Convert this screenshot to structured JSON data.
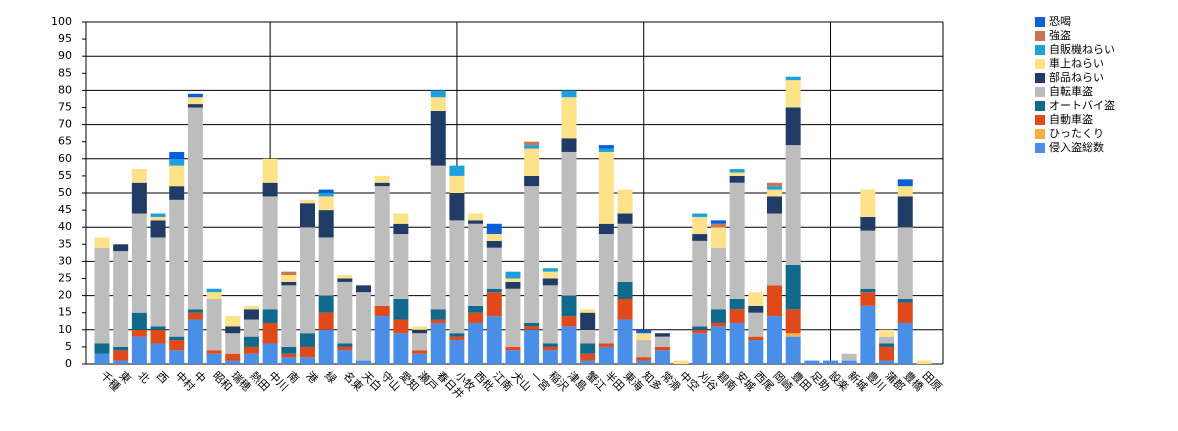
{
  "chart_data": {
    "type": "stacked_bar",
    "categories": [
      "千種",
      "東",
      "北",
      "西",
      "中村",
      "中",
      "昭和",
      "瑞穂",
      "熱田",
      "中川",
      "南",
      "港",
      "緑",
      "名東",
      "天白",
      "守山",
      "愛知",
      "瀬戸",
      "春日井",
      "小牧",
      "西枇",
      "江南",
      "犬山",
      "一宮",
      "稲沢",
      "津島",
      "蟹江",
      "半田",
      "東海",
      "知多",
      "常滑",
      "中空",
      "刈谷",
      "碧南",
      "安城",
      "西尾",
      "岡崎",
      "豊田",
      "足助",
      "設楽",
      "新城",
      "豊川",
      "蒲郡",
      "豊橋",
      "田原"
    ],
    "series": [
      {
        "name": "侵入盗総数",
        "color": "#4a8fe7",
        "values": [
          3,
          1,
          8,
          6,
          4,
          13,
          3,
          1,
          3,
          6,
          2,
          2,
          10,
          4,
          1,
          14,
          9,
          3,
          12,
          7,
          12,
          14,
          4,
          10,
          4,
          11,
          1,
          5,
          13,
          1,
          4,
          0,
          9,
          11,
          12,
          7,
          14,
          8,
          1,
          1,
          1,
          17,
          1,
          12,
          0
        ]
      },
      {
        "name": "ひったくり",
        "color": "#f5b041",
        "values": [
          0,
          0,
          0,
          0,
          0,
          0,
          0,
          0,
          0,
          0,
          0,
          0,
          0,
          0,
          0,
          0,
          0,
          0,
          0,
          0,
          0,
          0,
          0,
          0,
          0,
          0,
          0,
          0,
          0,
          0,
          0,
          0,
          0,
          0,
          0,
          0,
          0,
          1,
          0,
          0,
          0,
          0,
          0,
          0,
          0
        ]
      },
      {
        "name": "自動車盗",
        "color": "#e04a1a",
        "values": [
          0,
          3,
          2,
          4,
          3,
          2,
          1,
          2,
          2,
          6,
          1,
          3,
          5,
          1,
          0,
          3,
          4,
          1,
          1,
          1,
          3,
          7,
          1,
          1,
          1,
          3,
          2,
          1,
          6,
          1,
          1,
          0,
          1,
          1,
          4,
          1,
          9,
          7,
          0,
          0,
          0,
          4,
          4,
          6,
          0
        ]
      },
      {
        "name": "オートバイ盗",
        "color": "#116a8c",
        "values": [
          3,
          1,
          5,
          1,
          1,
          1,
          0,
          0,
          3,
          4,
          2,
          4,
          5,
          1,
          0,
          0,
          6,
          0,
          3,
          1,
          2,
          1,
          0,
          1,
          1,
          6,
          3,
          0,
          5,
          0,
          0,
          0,
          1,
          4,
          3,
          0,
          0,
          13,
          0,
          0,
          0,
          1,
          1,
          1,
          0
        ]
      },
      {
        "name": "自転車盗",
        "color": "#bdbdbd",
        "values": [
          28,
          28,
          29,
          26,
          40,
          59,
          15,
          6,
          5,
          33,
          18,
          31,
          17,
          18,
          20,
          35,
          19,
          5,
          42,
          33,
          24,
          12,
          17,
          40,
          17,
          42,
          4,
          32,
          17,
          5,
          3,
          0,
          25,
          18,
          34,
          7,
          21,
          35,
          0,
          0,
          2,
          17,
          2,
          21,
          0
        ]
      },
      {
        "name": "部品ねらい",
        "color": "#1f3b66",
        "values": [
          0,
          2,
          9,
          5,
          4,
          1,
          0,
          2,
          3,
          4,
          1,
          7,
          8,
          1,
          2,
          1,
          3,
          1,
          16,
          8,
          1,
          2,
          2,
          3,
          2,
          4,
          5,
          3,
          3,
          0,
          1,
          0,
          2,
          0,
          2,
          2,
          5,
          11,
          0,
          0,
          0,
          4,
          0,
          9,
          0
        ]
      },
      {
        "name": "車上ねらい",
        "color": "#fde28a",
        "values": [
          3,
          0,
          4,
          1,
          6,
          2,
          2,
          3,
          1,
          7,
          2,
          1,
          4,
          1,
          0,
          2,
          3,
          1,
          4,
          5,
          2,
          2,
          1,
          8,
          2,
          12,
          1,
          21,
          7,
          2,
          0,
          1,
          5,
          6,
          1,
          4,
          2,
          8,
          0,
          0,
          0,
          8,
          2,
          3,
          1
        ]
      },
      {
        "name": "自販機ねらい",
        "color": "#1ea0dc",
        "values": [
          0,
          0,
          0,
          1,
          2,
          0,
          1,
          0,
          0,
          0,
          0,
          0,
          1,
          0,
          0,
          0,
          0,
          0,
          2,
          3,
          0,
          0,
          2,
          1,
          1,
          2,
          0,
          1,
          0,
          0,
          0,
          0,
          1,
          0,
          1,
          0,
          1,
          1,
          0,
          0,
          0,
          0,
          0,
          0,
          0
        ]
      },
      {
        "name": "強盗",
        "color": "#c87850",
        "values": [
          0,
          0,
          0,
          0,
          0,
          0,
          0,
          0,
          0,
          0,
          1,
          0,
          0,
          0,
          0,
          0,
          0,
          0,
          0,
          0,
          0,
          0,
          0,
          1,
          0,
          0,
          0,
          0,
          0,
          0,
          0,
          0,
          0,
          1,
          0,
          0,
          1,
          0,
          0,
          0,
          0,
          0,
          0,
          0,
          0
        ]
      },
      {
        "name": "恐喝",
        "color": "#0a5fd8",
        "values": [
          0,
          0,
          0,
          0,
          2,
          1,
          0,
          0,
          0,
          0,
          0,
          0,
          1,
          0,
          0,
          0,
          0,
          0,
          0,
          0,
          0,
          3,
          0,
          0,
          0,
          0,
          0,
          1,
          0,
          1,
          0,
          0,
          0,
          1,
          0,
          0,
          0,
          0,
          0,
          0,
          0,
          0,
          0,
          2,
          0
        ]
      }
    ],
    "ylim": [
      0,
      100
    ],
    "yticks": [
      0,
      5,
      10,
      15,
      20,
      25,
      30,
      35,
      40,
      45,
      50,
      55,
      60,
      65,
      70,
      75,
      80,
      85,
      90,
      95,
      100
    ],
    "grid": true,
    "legend": "top-right"
  }
}
